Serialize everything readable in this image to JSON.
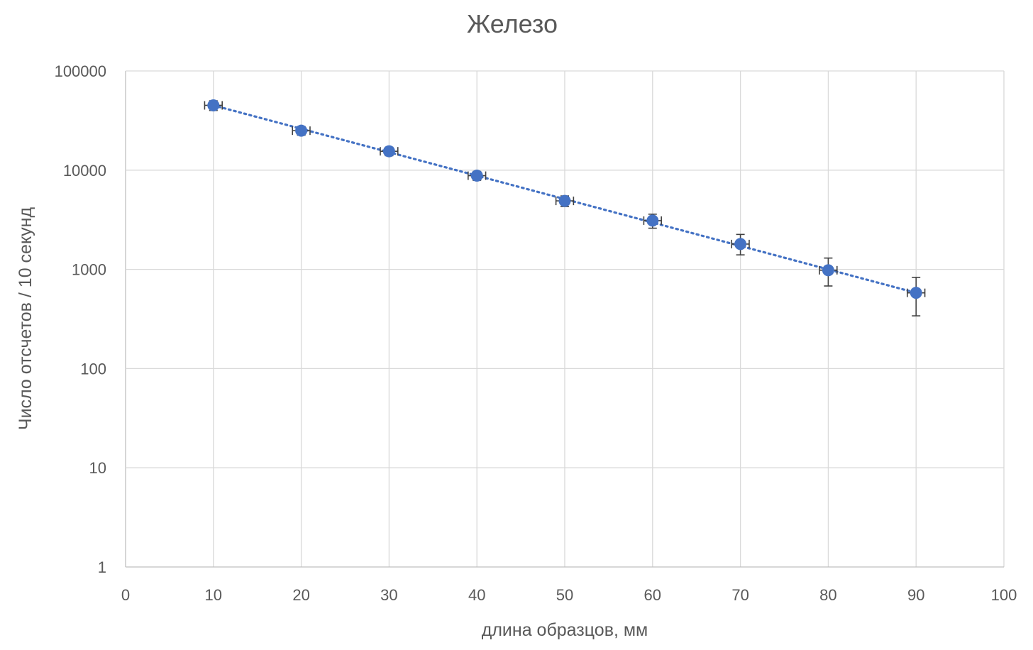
{
  "chart_data": {
    "type": "scatter",
    "title": "Железо",
    "xlabel": "длина образцов, мм",
    "ylabel": "Число отсчетов / 10 секунд",
    "xlim": [
      0,
      100
    ],
    "ylim": [
      1,
      100000
    ],
    "yscale": "log",
    "x_ticks": [
      "0",
      "10",
      "20",
      "30",
      "40",
      "50",
      "60",
      "70",
      "80",
      "90",
      "100"
    ],
    "y_ticks": [
      "1",
      "10",
      "100",
      "1000",
      "10000",
      "100000"
    ],
    "grid": true,
    "legend": "none",
    "series": [
      {
        "x": [
          10,
          20,
          30,
          40,
          50,
          60,
          70,
          80,
          90
        ],
        "y": [
          45000,
          25000,
          15500,
          8800,
          4900,
          3100,
          1800,
          980,
          580
        ],
        "y_err_low": [
          40000,
          22500,
          14000,
          7900,
          4300,
          2600,
          1400,
          680,
          340
        ],
        "y_err_high": [
          50000,
          27500,
          17000,
          9700,
          5500,
          3600,
          2250,
          1300,
          830
        ],
        "x_err": 1,
        "color": "#4472c4",
        "trendline": "exponential, dotted"
      }
    ],
    "trendline_range": [
      10,
      90
    ],
    "trendline_y": [
      45000,
      580
    ]
  }
}
